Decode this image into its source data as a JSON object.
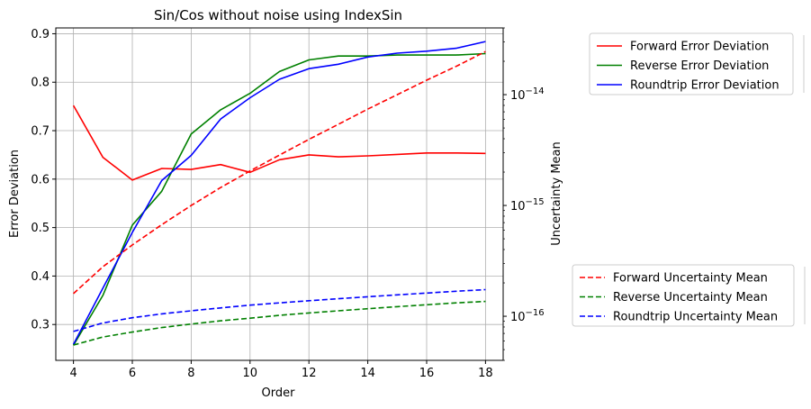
{
  "chart_data": {
    "type": "line",
    "title": "Sin/Cos without noise using IndexSin",
    "xlabel": "Order",
    "ylabel_left": "Error Deviation",
    "ylabel_right": "Uncertainty Mean",
    "xlim": [
      3.4,
      18.6
    ],
    "ylim_left": [
      0.226,
      0.912
    ],
    "ylim_right_log": [
      4e-17,
      4e-14
    ],
    "x_ticks": [
      "4",
      "6",
      "8",
      "10",
      "12",
      "14",
      "16",
      "18"
    ],
    "y_left_ticks": [
      "0.3",
      "0.4",
      "0.5",
      "0.6",
      "0.7",
      "0.8",
      "0.9"
    ],
    "y_right_ticks": [
      {
        "base": "10",
        "exp": "−16"
      },
      {
        "base": "10",
        "exp": "−15"
      },
      {
        "base": "10",
        "exp": "−14"
      }
    ],
    "x": [
      4,
      5,
      6,
      7,
      8,
      9,
      10,
      11,
      12,
      13,
      14,
      15,
      16,
      17,
      18
    ],
    "series_left": [
      {
        "name": "Forward Error Deviation",
        "color": "#ff0000",
        "style": "solid",
        "values": [
          0.752,
          0.645,
          0.598,
          0.622,
          0.62,
          0.63,
          0.614,
          0.64,
          0.65,
          0.646,
          0.648,
          0.651,
          0.654,
          0.654,
          0.653
        ]
      },
      {
        "name": "Reverse Error Deviation",
        "color": "#008000",
        "style": "solid",
        "values": [
          0.257,
          0.36,
          0.505,
          0.575,
          0.693,
          0.743,
          0.777,
          0.822,
          0.846,
          0.854,
          0.854,
          0.856,
          0.856,
          0.856,
          0.859
        ]
      },
      {
        "name": "Roundtrip Error Deviation",
        "color": "#0000ff",
        "style": "solid",
        "values": [
          0.259,
          0.375,
          0.49,
          0.597,
          0.649,
          0.724,
          0.768,
          0.806,
          0.828,
          0.837,
          0.852,
          0.86,
          0.864,
          0.87,
          0.884
        ]
      }
    ],
    "series_right": [
      {
        "name": "Forward Uncertainty Mean",
        "color": "#ff0000",
        "style": "dashed",
        "values": [
          1.6e-16,
          2.8e-16,
          4.4e-16,
          6.7e-16,
          1e-15,
          1.45e-15,
          2.05e-15,
          2.85e-15,
          3.95e-15,
          5.4e-15,
          7.4e-15,
          1e-14,
          1.35e-14,
          1.8e-14,
          2.45e-14
        ]
      },
      {
        "name": "Reverse Uncertainty Mean",
        "color": "#008000",
        "style": "dashed",
        "values": [
          5.5e-17,
          6.5e-17,
          7.2e-17,
          7.9e-17,
          8.5e-17,
          9.1e-17,
          9.6e-17,
          1.02e-16,
          1.07e-16,
          1.12e-16,
          1.17e-16,
          1.22e-16,
          1.27e-16,
          1.32e-16,
          1.36e-16
        ]
      },
      {
        "name": "Roundtrip Uncertainty Mean",
        "color": "#0000ff",
        "style": "dashed",
        "values": [
          7.3e-17,
          8.7e-17,
          9.7e-17,
          1.05e-16,
          1.12e-16,
          1.19e-16,
          1.26e-16,
          1.32e-16,
          1.38e-16,
          1.44e-16,
          1.5e-16,
          1.56e-16,
          1.62e-16,
          1.68e-16,
          1.74e-16
        ]
      }
    ],
    "grid": true,
    "legend_left_series": "outside-right-top",
    "legend_right_series": "outside-right-bottom"
  }
}
